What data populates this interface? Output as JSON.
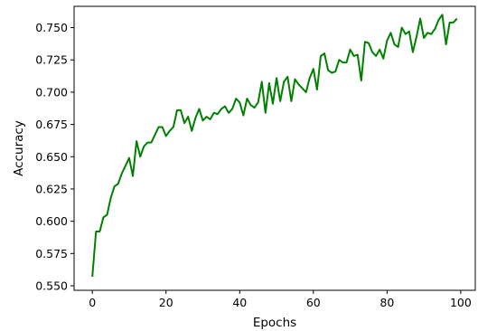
{
  "chart_data": {
    "type": "line",
    "title": "",
    "xlabel": "Epochs",
    "ylabel": "Accuracy",
    "xlim": [
      -4.95,
      103.95
    ],
    "ylim": [
      0.5465,
      0.7665
    ],
    "xticks": [
      0,
      20,
      40,
      60,
      80,
      100
    ],
    "xtick_labels": [
      "0",
      "20",
      "40",
      "60",
      "80",
      "100"
    ],
    "yticks": [
      0.55,
      0.575,
      0.6,
      0.625,
      0.65,
      0.675,
      0.7,
      0.725,
      0.75
    ],
    "ytick_labels": [
      "0.550",
      "0.575",
      "0.600",
      "0.625",
      "0.650",
      "0.675",
      "0.700",
      "0.725",
      "0.750"
    ],
    "grid": false,
    "legend": "none",
    "series": [
      {
        "color": "#008000",
        "x": [
          0,
          1,
          2,
          3,
          4,
          5,
          6,
          7,
          8,
          9,
          10,
          11,
          12,
          13,
          14,
          15,
          16,
          17,
          18,
          19,
          20,
          21,
          22,
          23,
          24,
          25,
          26,
          27,
          28,
          29,
          30,
          31,
          32,
          33,
          34,
          35,
          36,
          37,
          38,
          39,
          40,
          41,
          42,
          43,
          44,
          45,
          46,
          47,
          48,
          49,
          50,
          51,
          52,
          53,
          54,
          55,
          56,
          57,
          58,
          59,
          60,
          61,
          62,
          63,
          64,
          65,
          66,
          67,
          68,
          69,
          70,
          71,
          72,
          73,
          74,
          75,
          76,
          77,
          78,
          79,
          80,
          81,
          82,
          83,
          84,
          85,
          86,
          87,
          88,
          89,
          90,
          91,
          92,
          93,
          94,
          95,
          96,
          97,
          98,
          99
        ],
        "y": [
          0.557,
          0.592,
          0.592,
          0.603,
          0.605,
          0.618,
          0.627,
          0.629,
          0.637,
          0.643,
          0.649,
          0.635,
          0.662,
          0.65,
          0.658,
          0.661,
          0.661,
          0.667,
          0.673,
          0.673,
          0.666,
          0.67,
          0.673,
          0.686,
          0.686,
          0.676,
          0.681,
          0.67,
          0.68,
          0.687,
          0.678,
          0.681,
          0.679,
          0.684,
          0.683,
          0.687,
          0.689,
          0.684,
          0.687,
          0.695,
          0.692,
          0.682,
          0.695,
          0.69,
          0.688,
          0.692,
          0.708,
          0.684,
          0.707,
          0.691,
          0.711,
          0.693,
          0.708,
          0.712,
          0.693,
          0.71,
          0.706,
          0.703,
          0.7,
          0.711,
          0.718,
          0.702,
          0.728,
          0.73,
          0.717,
          0.715,
          0.716,
          0.725,
          0.723,
          0.723,
          0.733,
          0.728,
          0.729,
          0.709,
          0.739,
          0.738,
          0.731,
          0.728,
          0.733,
          0.726,
          0.74,
          0.746,
          0.737,
          0.735,
          0.75,
          0.745,
          0.747,
          0.731,
          0.743,
          0.757,
          0.742,
          0.746,
          0.745,
          0.749,
          0.756,
          0.76,
          0.737,
          0.754,
          0.754,
          0.757
        ]
      }
    ]
  }
}
